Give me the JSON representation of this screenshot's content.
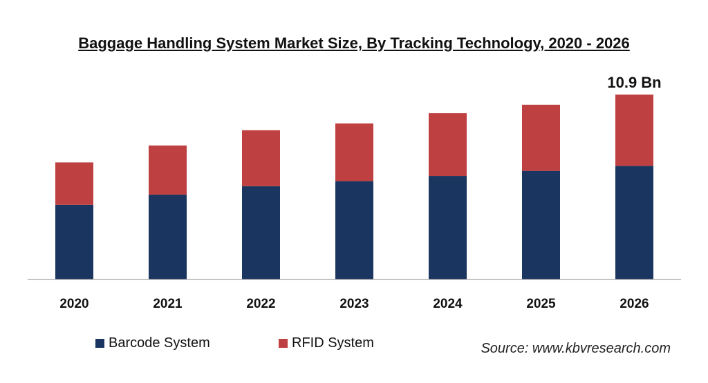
{
  "chart_data": {
    "type": "bar",
    "stacked": true,
    "title": "Baggage Handling System Market Size, By Tracking Technology, 2020 - 2026",
    "categories": [
      "2020",
      "2021",
      "2022",
      "2023",
      "2024",
      "2025",
      "2026"
    ],
    "series": [
      {
        "name": "Barcode System",
        "color": "#1a3560",
        "values": [
          4.4,
          5.0,
          5.5,
          5.8,
          6.1,
          6.4,
          6.7
        ]
      },
      {
        "name": "RFID System",
        "color": "#bf4040",
        "values": [
          2.5,
          2.9,
          3.3,
          3.4,
          3.7,
          3.9,
          4.2
        ]
      }
    ],
    "annotations": [
      {
        "category": "2026",
        "text": "10.9 Bn"
      }
    ],
    "ylim": [
      0,
      12
    ],
    "grid": false,
    "legend_position": "bottom-left",
    "source": "Source: www.kbvresearch.com"
  }
}
